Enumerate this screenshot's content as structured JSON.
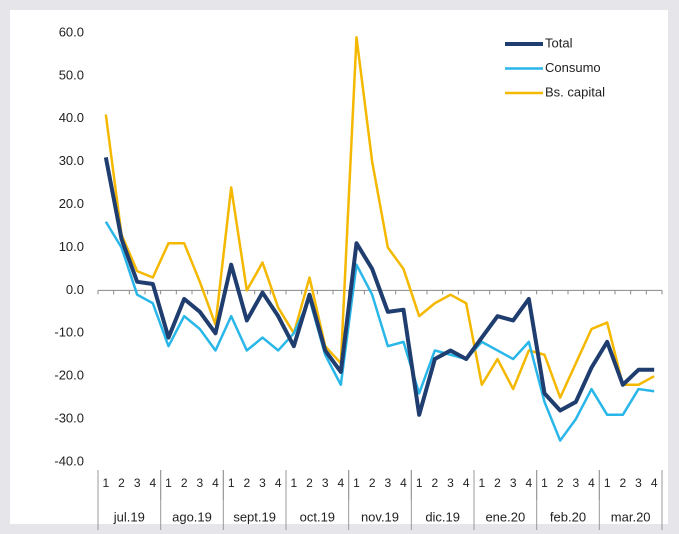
{
  "chart_data": {
    "type": "line",
    "categories": [
      "1",
      "2",
      "3",
      "4",
      "1",
      "2",
      "3",
      "4",
      "1",
      "2",
      "3",
      "4",
      "1",
      "2",
      "3",
      "4",
      "1",
      "2",
      "3",
      "4",
      "1",
      "2",
      "3",
      "4",
      "1",
      "2",
      "3",
      "4",
      "1",
      "2",
      "3",
      "4",
      "1",
      "2",
      "3",
      "4"
    ],
    "groups": [
      "jul.19",
      "ago.19",
      "sept.19",
      "oct.19",
      "nov.19",
      "dic.19",
      "ene.20",
      "feb.20",
      "mar.20"
    ],
    "series": [
      {
        "name": "Total",
        "color": "#1f3d6e",
        "values": [
          31,
          12,
          2,
          1.5,
          -11,
          -2,
          -5,
          -10,
          6,
          -7,
          -0.5,
          -6,
          -13,
          -1,
          -14,
          -19,
          11,
          5,
          -5,
          -4.5,
          -29,
          -16,
          -14,
          -16,
          -11,
          -6,
          -7,
          -2,
          -24,
          -28,
          -26,
          -18,
          -12,
          -22,
          -18.5,
          -18.5
        ]
      },
      {
        "name": "Consumo",
        "color": "#29b6e8",
        "values": [
          16,
          10,
          -1,
          -3,
          -13,
          -6,
          -9,
          -14,
          -6,
          -14,
          -11,
          -14,
          -10,
          -2,
          -15,
          -22,
          6,
          -1,
          -13,
          -12,
          -24,
          -14,
          -15,
          -16,
          -12,
          -14,
          -16,
          -12,
          -26,
          -35,
          -30,
          -23,
          -29,
          -29,
          -23,
          -23.5
        ]
      },
      {
        "name": "Bs. capital",
        "color": "#f5b800",
        "values": [
          41,
          13,
          4.5,
          3,
          11,
          11,
          2,
          -8,
          24,
          0,
          6.5,
          -4,
          -10,
          3,
          -13,
          -17,
          59,
          30,
          10,
          5,
          -6,
          -3,
          -1,
          -3,
          -22,
          -16,
          -23,
          -14,
          -15,
          -25,
          -17,
          -9,
          -7.5,
          -22,
          -22,
          -20
        ]
      }
    ],
    "ylim": [
      -40,
      60
    ],
    "yticks": [
      {
        "value": -40,
        "label": "-40.0"
      },
      {
        "value": -30,
        "label": "-30.0"
      },
      {
        "value": -20,
        "label": "-20.0"
      },
      {
        "value": -10,
        "label": "-10.0"
      },
      {
        "value": 0,
        "label": "0.0"
      },
      {
        "value": 10,
        "label": "10.0"
      },
      {
        "value": 20,
        "label": "20.0"
      },
      {
        "value": 30,
        "label": "30.0"
      },
      {
        "value": 40,
        "label": "40.0"
      },
      {
        "value": 50,
        "label": "50.0"
      },
      {
        "value": 60,
        "label": "60.0"
      }
    ],
    "legend": "top-right"
  }
}
